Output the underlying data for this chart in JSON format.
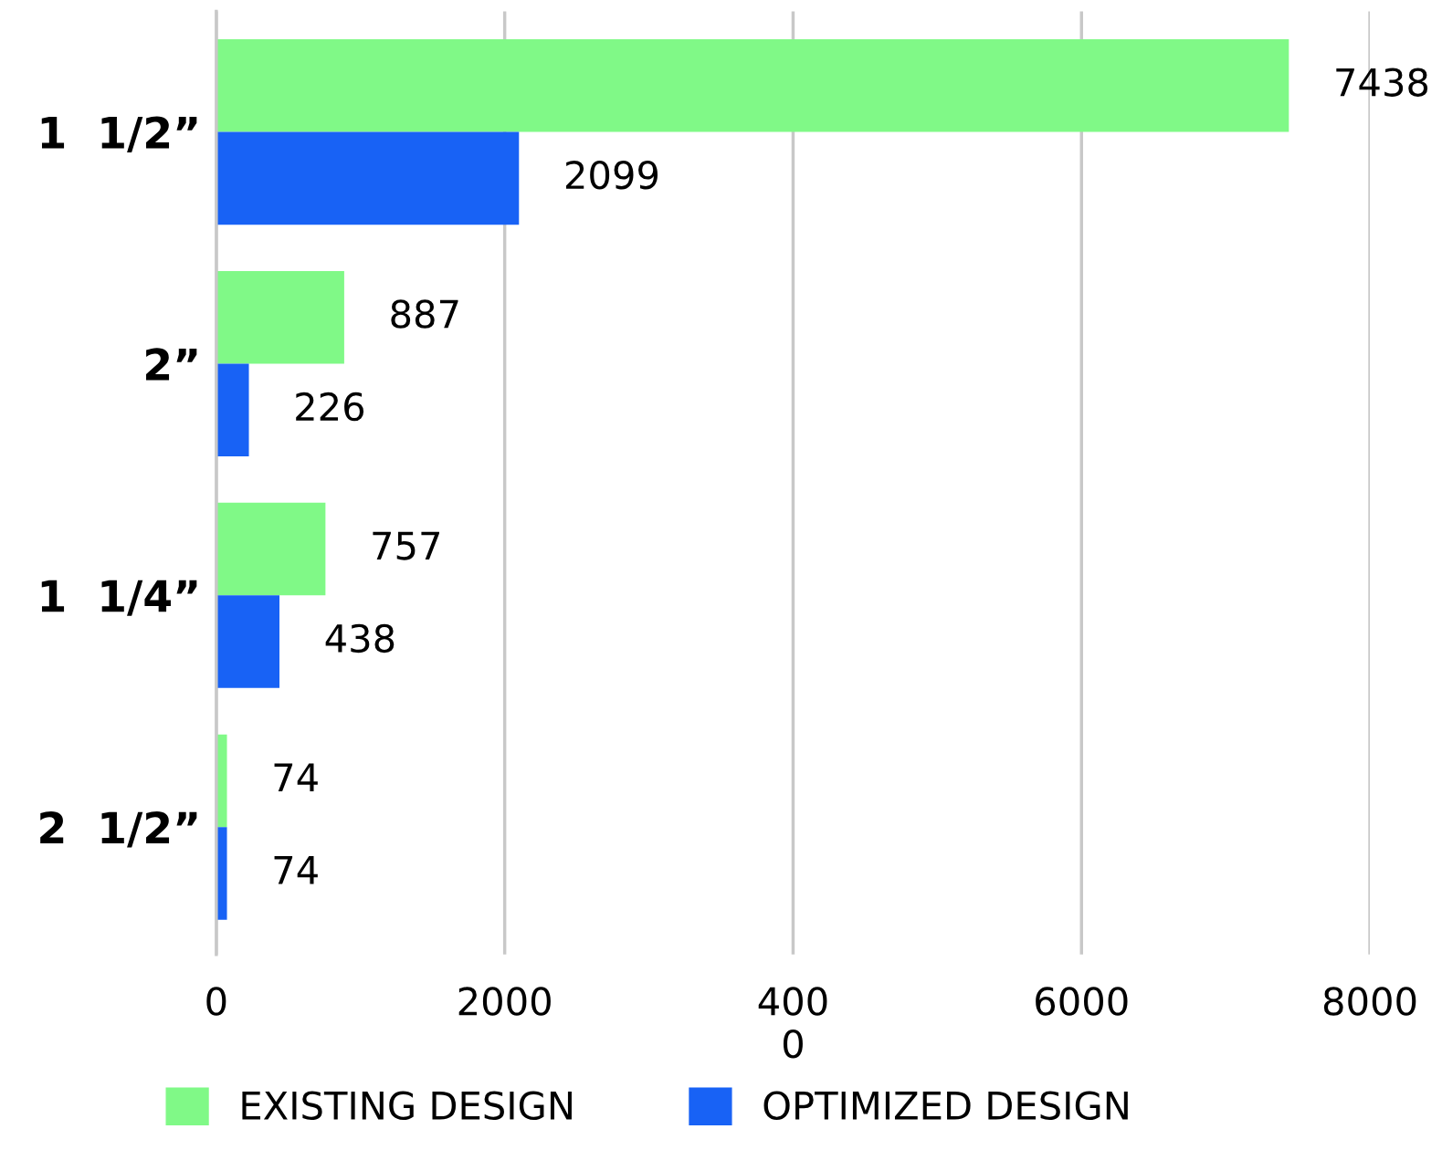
{
  "chart_data": {
    "type": "bar",
    "orientation": "horizontal",
    "categories": [
      "1  1/2”",
      "2”",
      "1  1/4”",
      "2  1/2”"
    ],
    "series": [
      {
        "name": "EXISTING DESIGN",
        "color": "#80f987",
        "values": [
          7438,
          887,
          757,
          74
        ]
      },
      {
        "name": "OPTIMIZED DESIGN",
        "color": "#1862f5",
        "values": [
          2099,
          226,
          438,
          74
        ]
      }
    ],
    "xlim": [
      0,
      8000
    ],
    "xticks": [
      0,
      2000,
      {
        "value": 4000,
        "label": "400\n0"
      },
      6000,
      8000
    ],
    "grid": "x",
    "legend": "bottom",
    "data_labels": true
  }
}
